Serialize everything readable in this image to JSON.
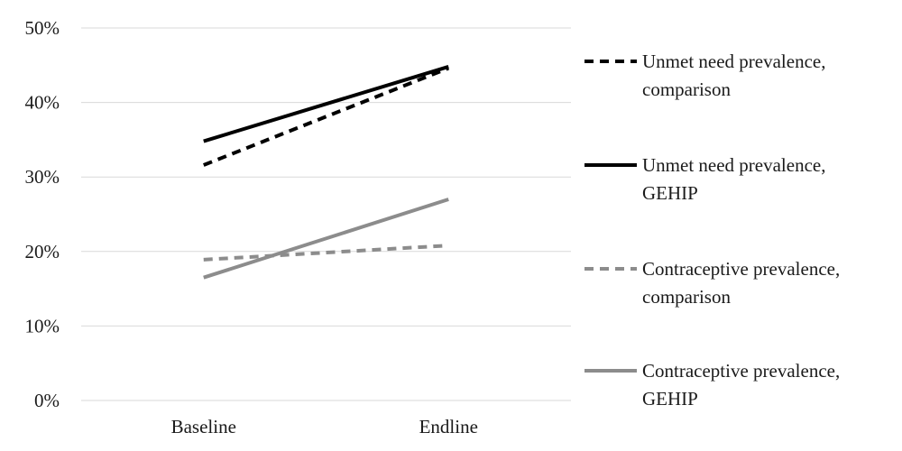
{
  "chart_data": {
    "type": "line",
    "title": "",
    "xlabel": "",
    "ylabel": "",
    "categories": [
      "Baseline",
      "Endline"
    ],
    "ylim": [
      0,
      50
    ],
    "yticks": [
      0,
      10,
      20,
      30,
      40,
      50
    ],
    "ytick_labels": [
      "0%",
      "10%",
      "20%",
      "30%",
      "40%",
      "50%"
    ],
    "grid": true,
    "legend_position": "right",
    "series": [
      {
        "name_lines": [
          "Unmet need prevalence,",
          "comparison"
        ],
        "values": [
          31.6,
          44.6
        ],
        "color": "#000000",
        "dashed": true
      },
      {
        "name_lines": [
          "Unmet need prevalence,",
          "GEHIP"
        ],
        "values": [
          34.8,
          44.8
        ],
        "color": "#000000",
        "dashed": false
      },
      {
        "name_lines": [
          "Contraceptive prevalence,",
          "comparison"
        ],
        "values": [
          18.9,
          20.8
        ],
        "color": "#8c8c8c",
        "dashed": true
      },
      {
        "name_lines": [
          "Contraceptive prevalence,",
          "GEHIP"
        ],
        "values": [
          16.5,
          27.0
        ],
        "color": "#8c8c8c",
        "dashed": false
      }
    ]
  }
}
